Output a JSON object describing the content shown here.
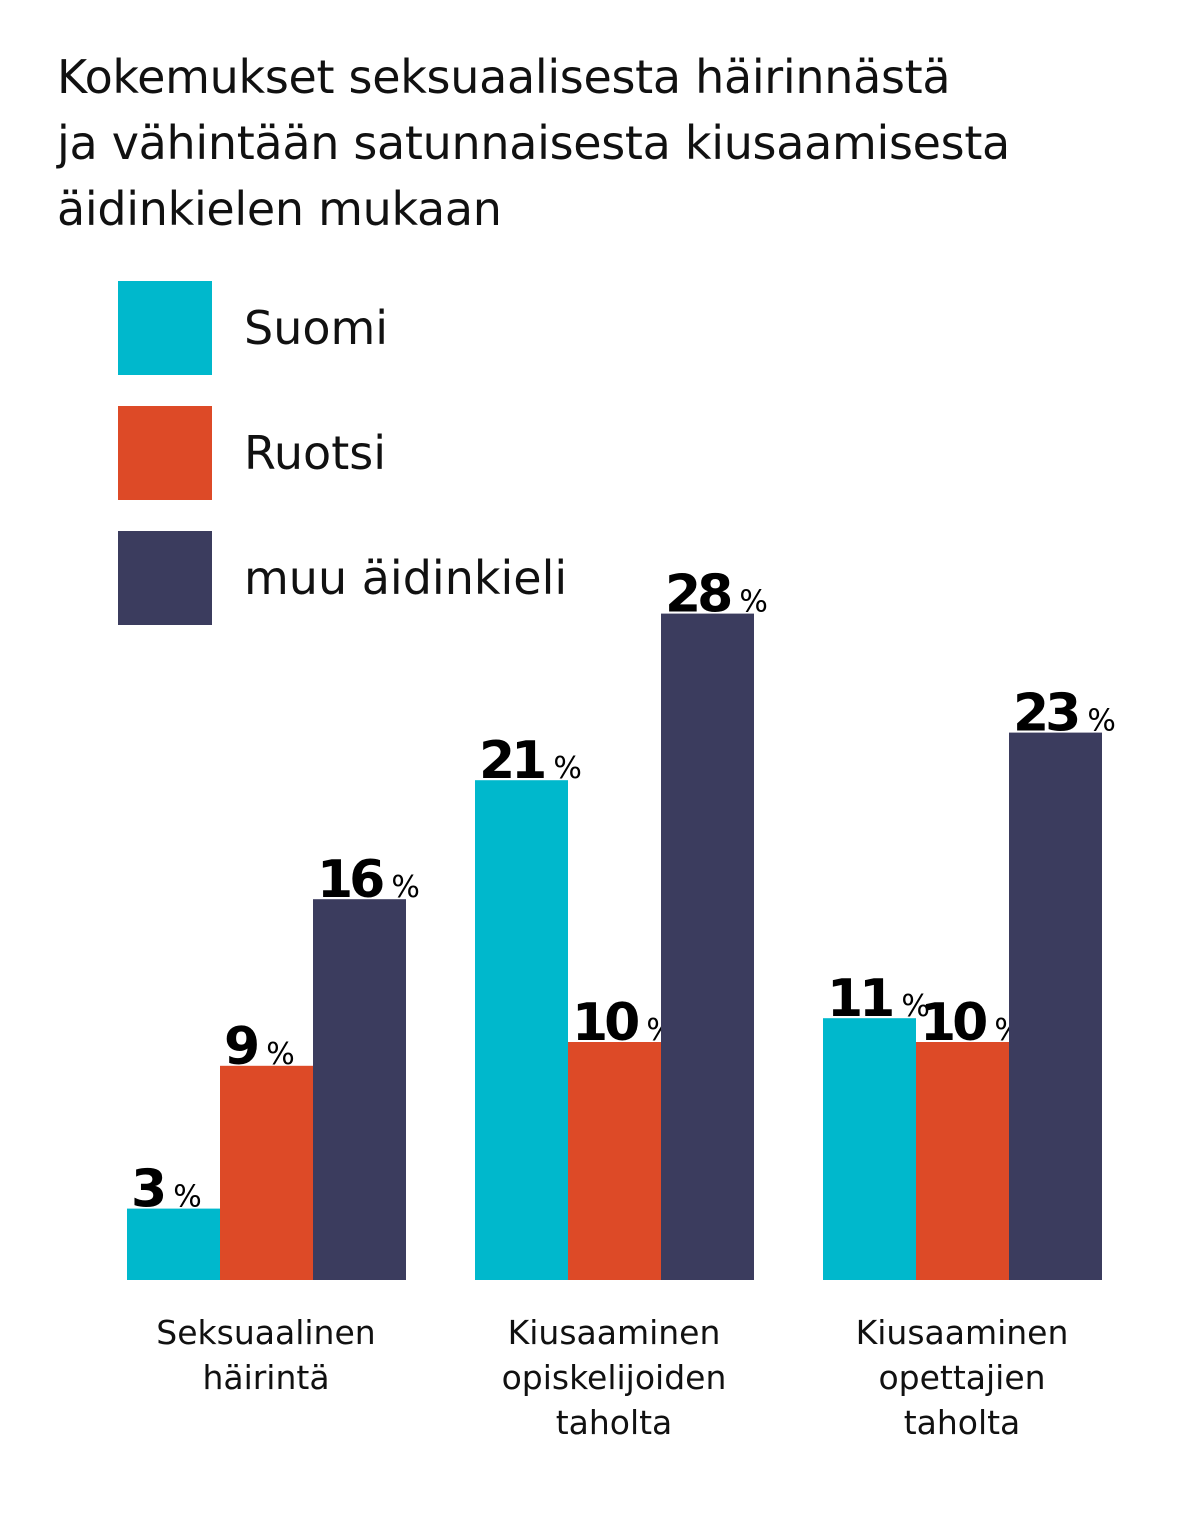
{
  "chart_data": {
    "type": "bar",
    "title": "Kokemukset seksuaalisesta häirinnästä ja vähintään satunnaisesta kiusaamisesta äidinkielen mukaan",
    "title_lines": [
      "Kokemukset seksuaalisesta häirinnästä",
      "ja vähintään satunnaisesta kiusaamisesta",
      "äidinkielen mukaan"
    ],
    "categories": [
      [
        "Seksuaalinen",
        "häirintä"
      ],
      [
        "Kiusaaminen",
        "opiskelijoiden",
        "taholta"
      ],
      [
        "Kiusaaminen",
        "opettajien",
        "taholta"
      ]
    ],
    "series": [
      {
        "name": "Suomi",
        "color": "#00b8cc",
        "values": [
          3,
          21,
          11
        ]
      },
      {
        "name": "Ruotsi",
        "color": "#dd4a27",
        "values": [
          9,
          10,
          10
        ]
      },
      {
        "name": "muu äidinkieli",
        "color": "#3b3c5e",
        "values": [
          16,
          28,
          23
        ]
      }
    ],
    "value_suffix": "%",
    "ylim": [
      0,
      28
    ],
    "grid": false,
    "legend_position": "top-left",
    "xlabel": "",
    "ylabel": ""
  }
}
